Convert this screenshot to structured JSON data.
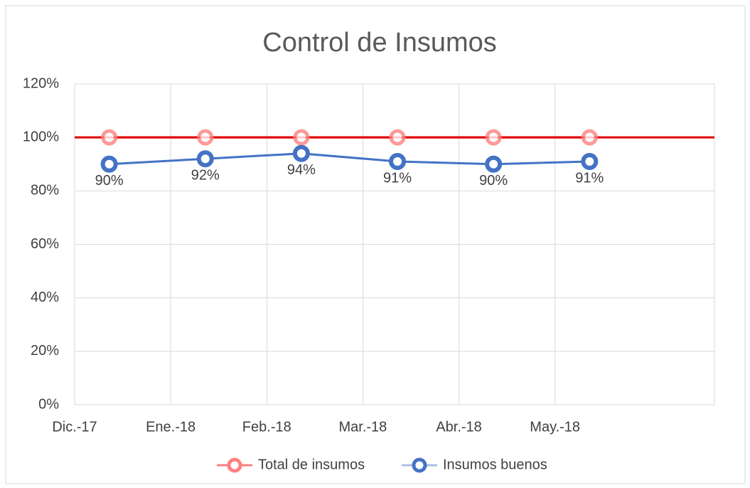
{
  "chart_data": {
    "type": "line",
    "title": "Control de Insumos",
    "categories": [
      "Dic.-17",
      "Ene.-18",
      "Feb.-18",
      "Mar.-18",
      "Abr.-18",
      "May.-18"
    ],
    "series": [
      {
        "name": "Total de insumos",
        "color": "#e00000",
        "values": [
          100,
          100,
          100,
          100,
          100,
          100
        ]
      },
      {
        "name": "Insumos buenos",
        "color": "#4472c4",
        "values": [
          90,
          92,
          94,
          91,
          90,
          91
        ],
        "value_labels": [
          "90%",
          "92%",
          "94%",
          "91%",
          "90%",
          "91%"
        ]
      }
    ],
    "ylim": [
      0,
      120
    ],
    "yticks": [
      {
        "value": 0,
        "label": "0%"
      },
      {
        "value": 20,
        "label": "20%"
      },
      {
        "value": 40,
        "label": "40%"
      },
      {
        "value": 60,
        "label": "60%"
      },
      {
        "value": 80,
        "label": "80%"
      },
      {
        "value": 100,
        "label": "100%"
      },
      {
        "value": 120,
        "label": "120%"
      }
    ],
    "grid": true,
    "legend": "bottom"
  }
}
